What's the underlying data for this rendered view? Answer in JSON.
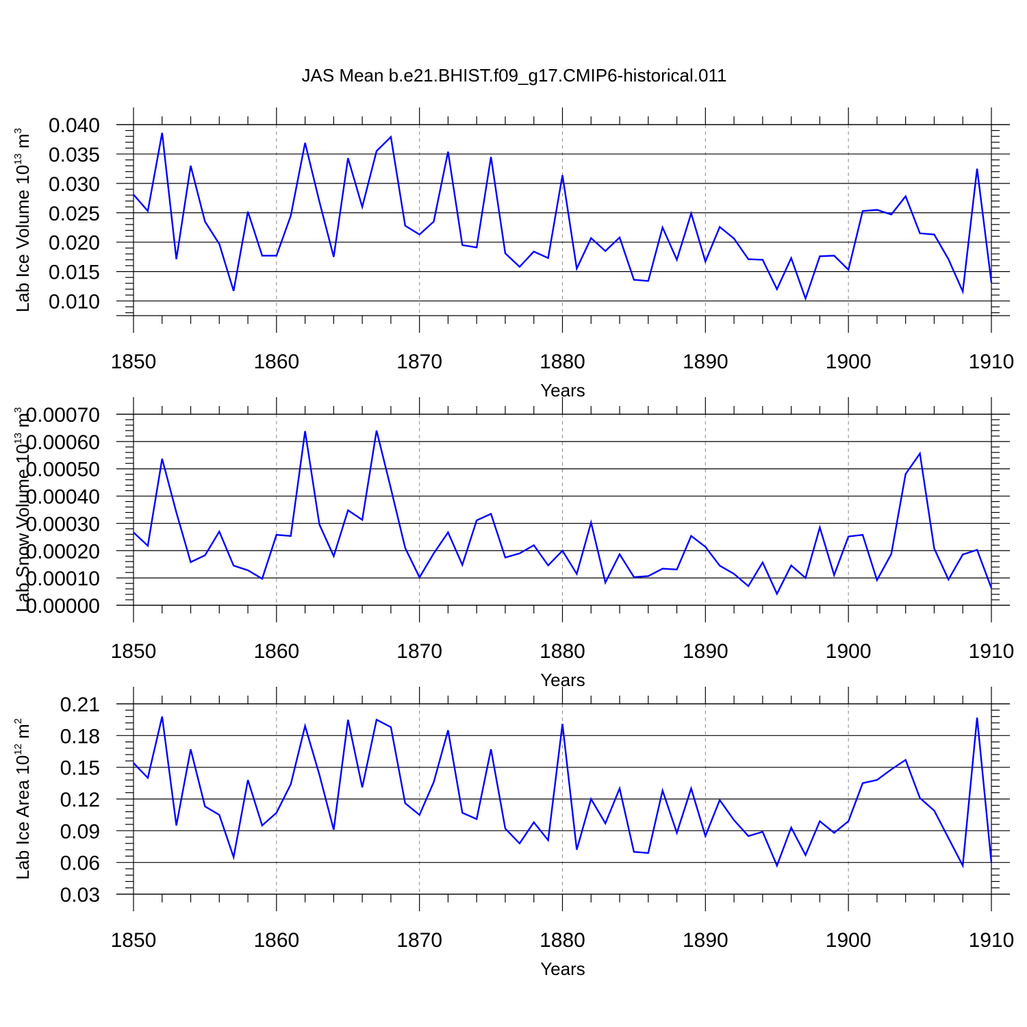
{
  "title": "JAS Mean b.e21.BHIST.f09_g17.CMIP6-historical.011",
  "colors": {
    "line": "#0000ff",
    "axis": "#000000",
    "grid": "#888888"
  },
  "chart_data": [
    {
      "type": "line",
      "xlabel": "Years",
      "ylabel": {
        "prefix": "Lab Ice Volume 10",
        "exp": "13",
        "unit": " m",
        "unit_exp": "3"
      },
      "xlim": [
        1850,
        1910
      ],
      "ylim": [
        0.0075,
        0.04
      ],
      "xticks": [
        "1850",
        "1860",
        "1870",
        "1880",
        "1890",
        "1900",
        "1910"
      ],
      "yticks": [
        "0.010",
        "0.015",
        "0.020",
        "0.025",
        "0.030",
        "0.035",
        "0.040"
      ],
      "ytick_values": [
        0.01,
        0.015,
        0.02,
        0.025,
        0.03,
        0.035,
        0.04
      ],
      "grid": "vertical dashed at major x ticks",
      "series": [
        {
          "x_start": 1850,
          "values": [
            0.0281,
            0.0253,
            0.0386,
            0.0171,
            0.033,
            0.0235,
            0.0197,
            0.0117,
            0.0252,
            0.0177,
            0.0177,
            0.0245,
            0.0369,
            0.0269,
            0.0175,
            0.0343,
            0.026,
            0.0355,
            0.0379,
            0.0228,
            0.0213,
            0.0235,
            0.0354,
            0.0195,
            0.0191,
            0.0345,
            0.0181,
            0.0158,
            0.0184,
            0.0173,
            0.0314,
            0.0155,
            0.0207,
            0.0185,
            0.0208,
            0.0136,
            0.0134,
            0.0225,
            0.017,
            0.0249,
            0.0167,
            0.0226,
            0.0206,
            0.0171,
            0.017,
            0.012,
            0.0173,
            0.0104,
            0.0176,
            0.0177,
            0.0153,
            0.0253,
            0.0255,
            0.0247,
            0.0278,
            0.0215,
            0.0213,
            0.0171,
            0.0116,
            0.0325,
            0.0131
          ]
        }
      ]
    },
    {
      "type": "line",
      "xlabel": "Years",
      "ylabel": {
        "prefix": "Lab Snow Volume 10",
        "exp": "13",
        "unit": " m",
        "unit_exp": "3"
      },
      "xlim": [
        1850,
        1910
      ],
      "ylim": [
        0.0,
        0.0007
      ],
      "xticks": [
        "1850",
        "1860",
        "1870",
        "1880",
        "1890",
        "1900",
        "1910"
      ],
      "yticks": [
        "0.00000",
        "0.00010",
        "0.00020",
        "0.00030",
        "0.00040",
        "0.00050",
        "0.00060",
        "0.00070"
      ],
      "ytick_values": [
        0.0,
        0.0001,
        0.0002,
        0.0003,
        0.0004,
        0.0005,
        0.0006,
        0.0007
      ],
      "grid": "vertical dashed at major x ticks",
      "series": [
        {
          "x_start": 1850,
          "values": [
            0.000267,
            0.000218,
            0.000537,
            0.00034,
            0.000158,
            0.000183,
            0.00027,
            0.000145,
            0.000128,
            9.7e-05,
            0.000258,
            0.000254,
            0.000638,
            0.000296,
            0.00018,
            0.000348,
            0.000313,
            0.00064,
            0.000428,
            0.00021,
            0.000102,
            0.00019,
            0.000267,
            0.000148,
            0.000311,
            0.000335,
            0.000175,
            0.00019,
            0.00022,
            0.000146,
            0.0002,
            0.000115,
            0.000303,
            8.3e-05,
            0.000187,
            0.000103,
            0.000107,
            0.000134,
            0.000131,
            0.000254,
            0.000214,
            0.000145,
            0.000115,
            7e-05,
            0.000157,
            4.2e-05,
            0.000146,
            0.0001,
            0.000285,
            0.000111,
            0.000252,
            0.000258,
            9.2e-05,
            0.000188,
            0.000481,
            0.000556,
            0.000208,
            9.4e-05,
            0.000186,
            0.000203,
            6.3e-05
          ]
        }
      ]
    },
    {
      "type": "line",
      "xlabel": "Years",
      "ylabel": {
        "prefix": "Lab Ice Area 10",
        "exp": "12",
        "unit": " m",
        "unit_exp": "2"
      },
      "xlim": [
        1850,
        1910
      ],
      "ylim": [
        0.03,
        0.21
      ],
      "xticks": [
        "1850",
        "1860",
        "1870",
        "1880",
        "1890",
        "1900",
        "1910"
      ],
      "yticks": [
        "0.03",
        "0.06",
        "0.09",
        "0.12",
        "0.15",
        "0.18",
        "0.21"
      ],
      "ytick_values": [
        0.03,
        0.06,
        0.09,
        0.12,
        0.15,
        0.18,
        0.21
      ],
      "grid": "vertical dashed at major x ticks",
      "series": [
        {
          "x_start": 1850,
          "values": [
            0.154,
            0.14,
            0.198,
            0.095,
            0.167,
            0.113,
            0.105,
            0.065,
            0.138,
            0.095,
            0.107,
            0.134,
            0.189,
            0.143,
            0.091,
            0.195,
            0.131,
            0.195,
            0.188,
            0.116,
            0.105,
            0.136,
            0.185,
            0.107,
            0.101,
            0.167,
            0.092,
            0.078,
            0.098,
            0.081,
            0.191,
            0.072,
            0.12,
            0.097,
            0.13,
            0.07,
            0.069,
            0.128,
            0.088,
            0.13,
            0.085,
            0.119,
            0.1,
            0.085,
            0.089,
            0.057,
            0.093,
            0.067,
            0.099,
            0.088,
            0.099,
            0.135,
            0.138,
            0.148,
            0.157,
            0.121,
            0.109,
            0.083,
            0.057,
            0.197,
            0.06
          ]
        }
      ]
    }
  ]
}
